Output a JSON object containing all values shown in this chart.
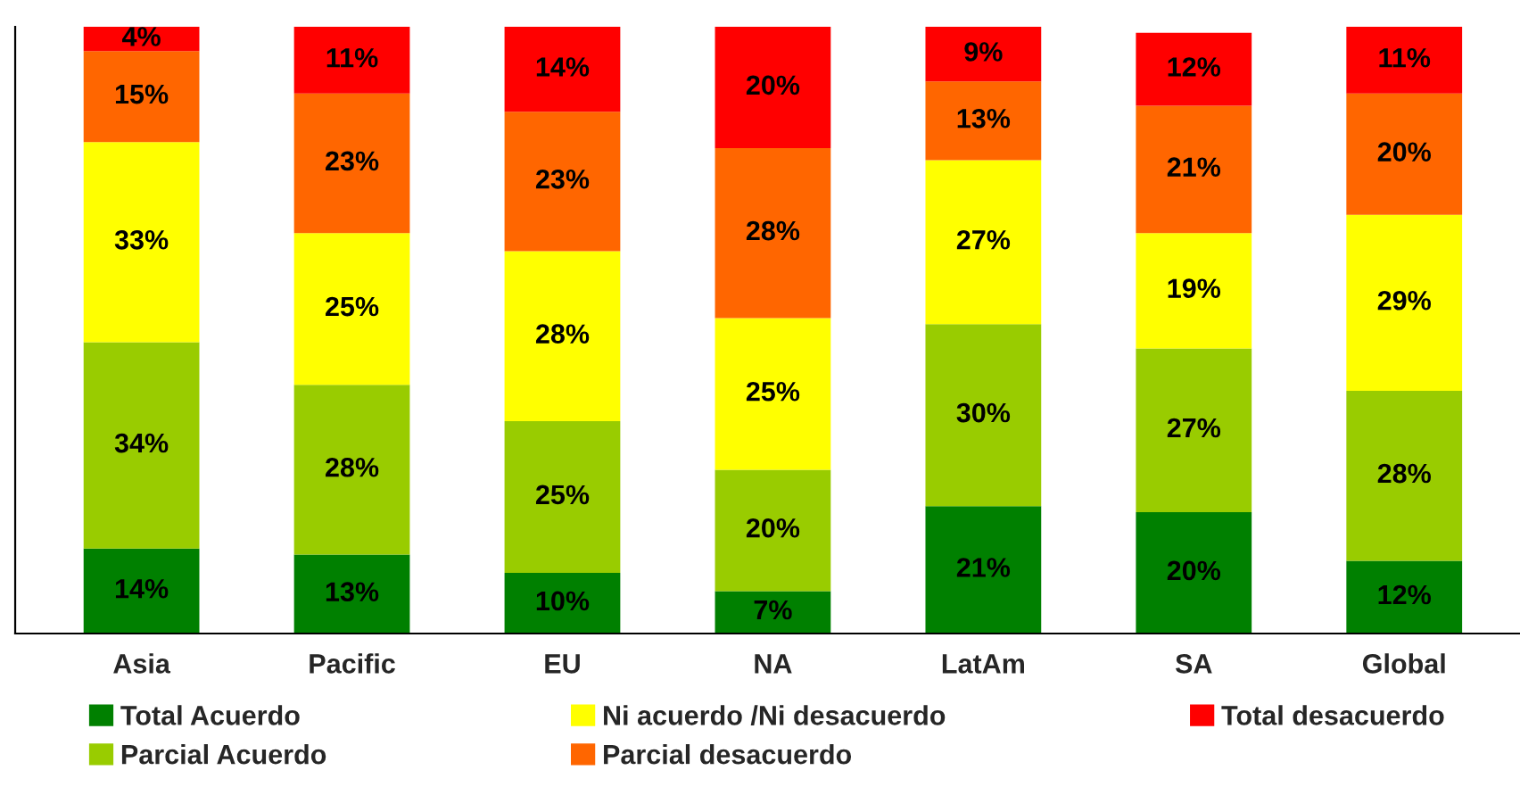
{
  "chart_data": {
    "type": "bar",
    "stacked": true,
    "categories": [
      "Asia",
      "Pacific",
      "EU",
      "NA",
      "LatAm",
      "SA",
      "Global"
    ],
    "series": [
      {
        "name": "Total Acuerdo",
        "color": "#008000",
        "values": [
          14,
          13,
          10,
          7,
          21,
          20,
          12
        ],
        "value_labels": [
          "14%",
          "13%",
          "10%",
          "7%",
          "21%",
          "20%",
          "12%"
        ]
      },
      {
        "name": "Parcial Acuerdo",
        "color": "#99cc00",
        "values": [
          34,
          28,
          25,
          20,
          30,
          27,
          28
        ],
        "value_labels": [
          "34%",
          "28%",
          "25%",
          "20%",
          "30%",
          "27%",
          "28%"
        ]
      },
      {
        "name": "Ni acuerdo /Ni desacuerdo",
        "color": "#ffff00",
        "values": [
          33,
          25,
          28,
          25,
          27,
          19,
          29
        ],
        "value_labels": [
          "33%",
          "25%",
          "28%",
          "25%",
          "27%",
          "19%",
          "29%"
        ]
      },
      {
        "name": "Parcial desacuerdo",
        "color": "#ff6600",
        "values": [
          15,
          23,
          23,
          28,
          13,
          21,
          20
        ],
        "value_labels": [
          "15%",
          "23%",
          "23%",
          "28%",
          "13%",
          "21%",
          "20%"
        ]
      },
      {
        "name": "Total desacuerdo",
        "color": "#ff0000",
        "values": [
          4,
          11,
          14,
          20,
          9,
          12,
          11
        ],
        "value_labels": [
          "4%",
          "11%",
          "14%",
          "20%",
          "9%",
          "12%",
          "11%"
        ]
      }
    ],
    "ylim": [
      0,
      100
    ],
    "tick_labels": "x",
    "grid": false,
    "legend": "bottom"
  }
}
